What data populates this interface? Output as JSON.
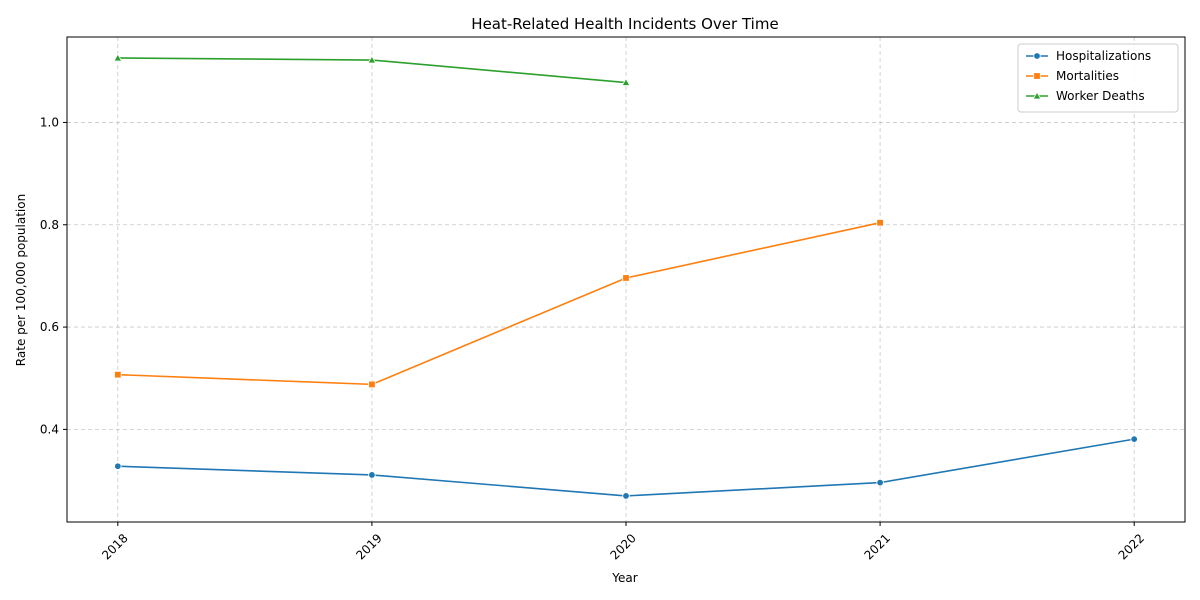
{
  "chart_data": {
    "type": "line",
    "title": "Heat-Related Health Incidents Over Time",
    "xlabel": "Year",
    "ylabel": "Rate per 100,000 population",
    "x": [
      2018,
      2019,
      2020,
      2021,
      2022
    ],
    "xlim": [
      2017.8,
      2022.2
    ],
    "ylim": [
      0.219,
      1.167
    ],
    "yticks": [
      0.4,
      0.6,
      0.8,
      1.0
    ],
    "ytick_labels": [
      "0.4",
      "0.6",
      "0.8",
      "1.0"
    ],
    "xtick_labels": [
      "2018",
      "2019",
      "2020",
      "2021",
      "2022"
    ],
    "grid": true,
    "legend_position": "top-right",
    "series": [
      {
        "name": "Hospitalizations",
        "color": "#1f77b4",
        "marker": "circle",
        "values": [
          0.328,
          0.311,
          0.27,
          0.296,
          0.381
        ]
      },
      {
        "name": "Mortalities",
        "color": "#ff7f0e",
        "marker": "square",
        "values": [
          0.507,
          0.488,
          0.696,
          0.804,
          null
        ]
      },
      {
        "name": "Worker Deaths",
        "color": "#2ca02c",
        "marker": "triangle",
        "values": [
          1.126,
          1.122,
          1.078,
          null,
          null
        ]
      }
    ]
  }
}
